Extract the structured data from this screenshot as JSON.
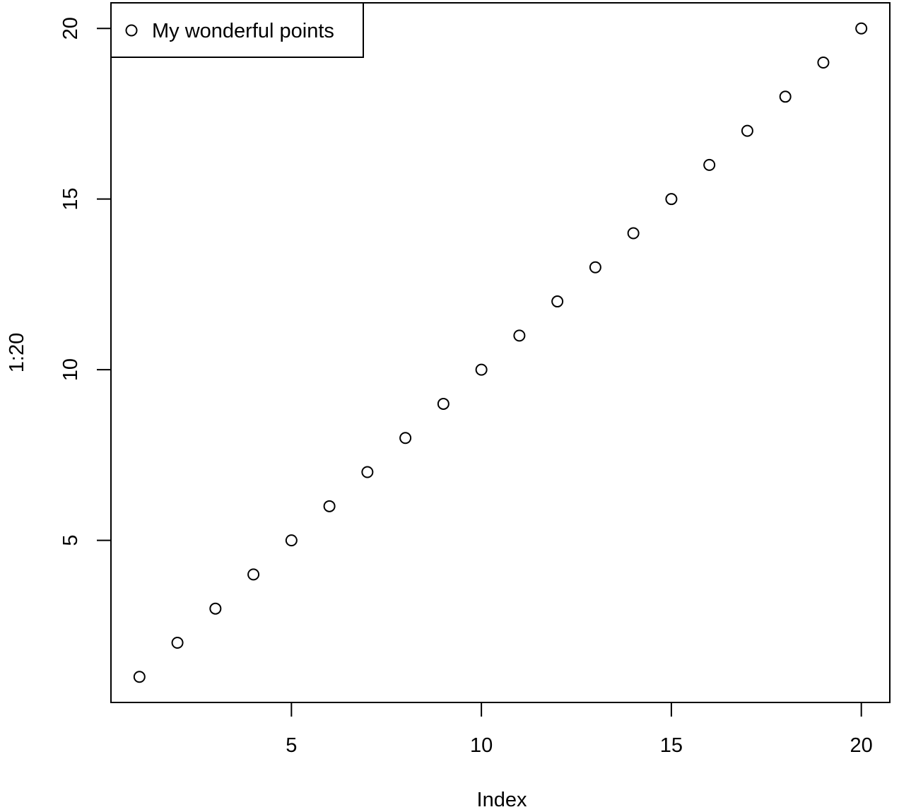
{
  "chart_data": {
    "type": "scatter",
    "title": "",
    "xlabel": "Index",
    "ylabel": "1:20",
    "xlim": [
      0.25,
      20.75
    ],
    "ylim": [
      0.25,
      20.75
    ],
    "x_ticks": [
      5,
      10,
      15,
      20
    ],
    "y_ticks": [
      5,
      10,
      15,
      20
    ],
    "grid": false,
    "legend": {
      "position": "top-left",
      "entries": [
        "My wonderful points"
      ]
    },
    "series": [
      {
        "name": "My wonderful points",
        "marker": "open-circle",
        "color": "#000000",
        "x": [
          1,
          2,
          3,
          4,
          5,
          6,
          7,
          8,
          9,
          10,
          11,
          12,
          13,
          14,
          15,
          16,
          17,
          18,
          19,
          20
        ],
        "y": [
          1,
          2,
          3,
          4,
          5,
          6,
          7,
          8,
          9,
          10,
          11,
          12,
          13,
          14,
          15,
          16,
          17,
          18,
          19,
          20
        ]
      }
    ]
  }
}
